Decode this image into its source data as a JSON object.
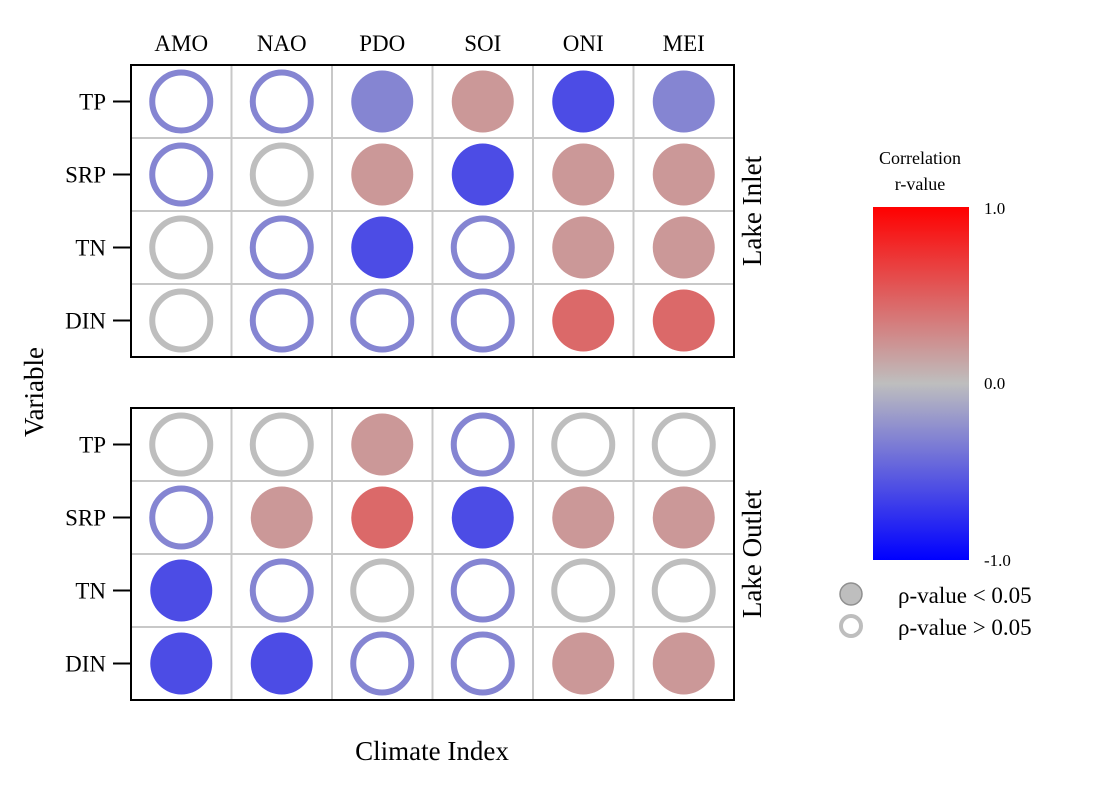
{
  "chart_data": {
    "type": "heatmap",
    "xlabel": "Climate Index",
    "ylabel": "Variable",
    "columns": [
      "AMO",
      "NAO",
      "PDO",
      "SOI",
      "ONI",
      "MEI"
    ],
    "rows": [
      "TP",
      "SRP",
      "TN",
      "DIN"
    ],
    "colors": {
      "negative": "#0000ff",
      "zero": "#bebebe",
      "positive": "#ff0000"
    },
    "value_range": [
      -1.0,
      1.0
    ],
    "panels": [
      {
        "label": "Lake Inlet",
        "values": [
          [
            -0.3,
            -0.3,
            -0.3,
            0.2,
            -0.6,
            -0.3
          ],
          [
            -0.3,
            0.0,
            0.2,
            -0.6,
            0.2,
            0.2
          ],
          [
            0.0,
            -0.3,
            -0.6,
            -0.3,
            0.2,
            0.2
          ],
          [
            0.0,
            -0.3,
            -0.3,
            -0.3,
            0.45,
            0.45
          ]
        ],
        "significant": [
          [
            false,
            false,
            true,
            true,
            true,
            true
          ],
          [
            false,
            false,
            true,
            true,
            true,
            true
          ],
          [
            false,
            false,
            true,
            false,
            true,
            true
          ],
          [
            false,
            false,
            false,
            false,
            true,
            true
          ]
        ]
      },
      {
        "label": "Lake Outlet",
        "values": [
          [
            0.0,
            0.0,
            0.2,
            -0.3,
            0.0,
            0.0
          ],
          [
            -0.3,
            0.2,
            0.45,
            -0.6,
            0.2,
            0.2
          ],
          [
            -0.6,
            -0.3,
            0.0,
            -0.3,
            0.0,
            0.0
          ],
          [
            -0.6,
            -0.6,
            -0.3,
            -0.3,
            0.2,
            0.2
          ]
        ],
        "significant": [
          [
            false,
            false,
            true,
            false,
            false,
            false
          ],
          [
            false,
            true,
            true,
            true,
            true,
            true
          ],
          [
            true,
            false,
            false,
            false,
            false,
            false
          ],
          [
            true,
            true,
            false,
            false,
            true,
            true
          ]
        ]
      }
    ],
    "legend": {
      "title_lines": [
        "Correlation",
        "r-value"
      ],
      "ticks": [
        "1.0",
        "0.0",
        "-1.0"
      ],
      "tick_values": [
        1.0,
        0.0,
        -1.0
      ],
      "significance": [
        {
          "label": "ρ-value < 0.05",
          "filled": true
        },
        {
          "label": "ρ-value > 0.05",
          "filled": false
        }
      ]
    }
  }
}
